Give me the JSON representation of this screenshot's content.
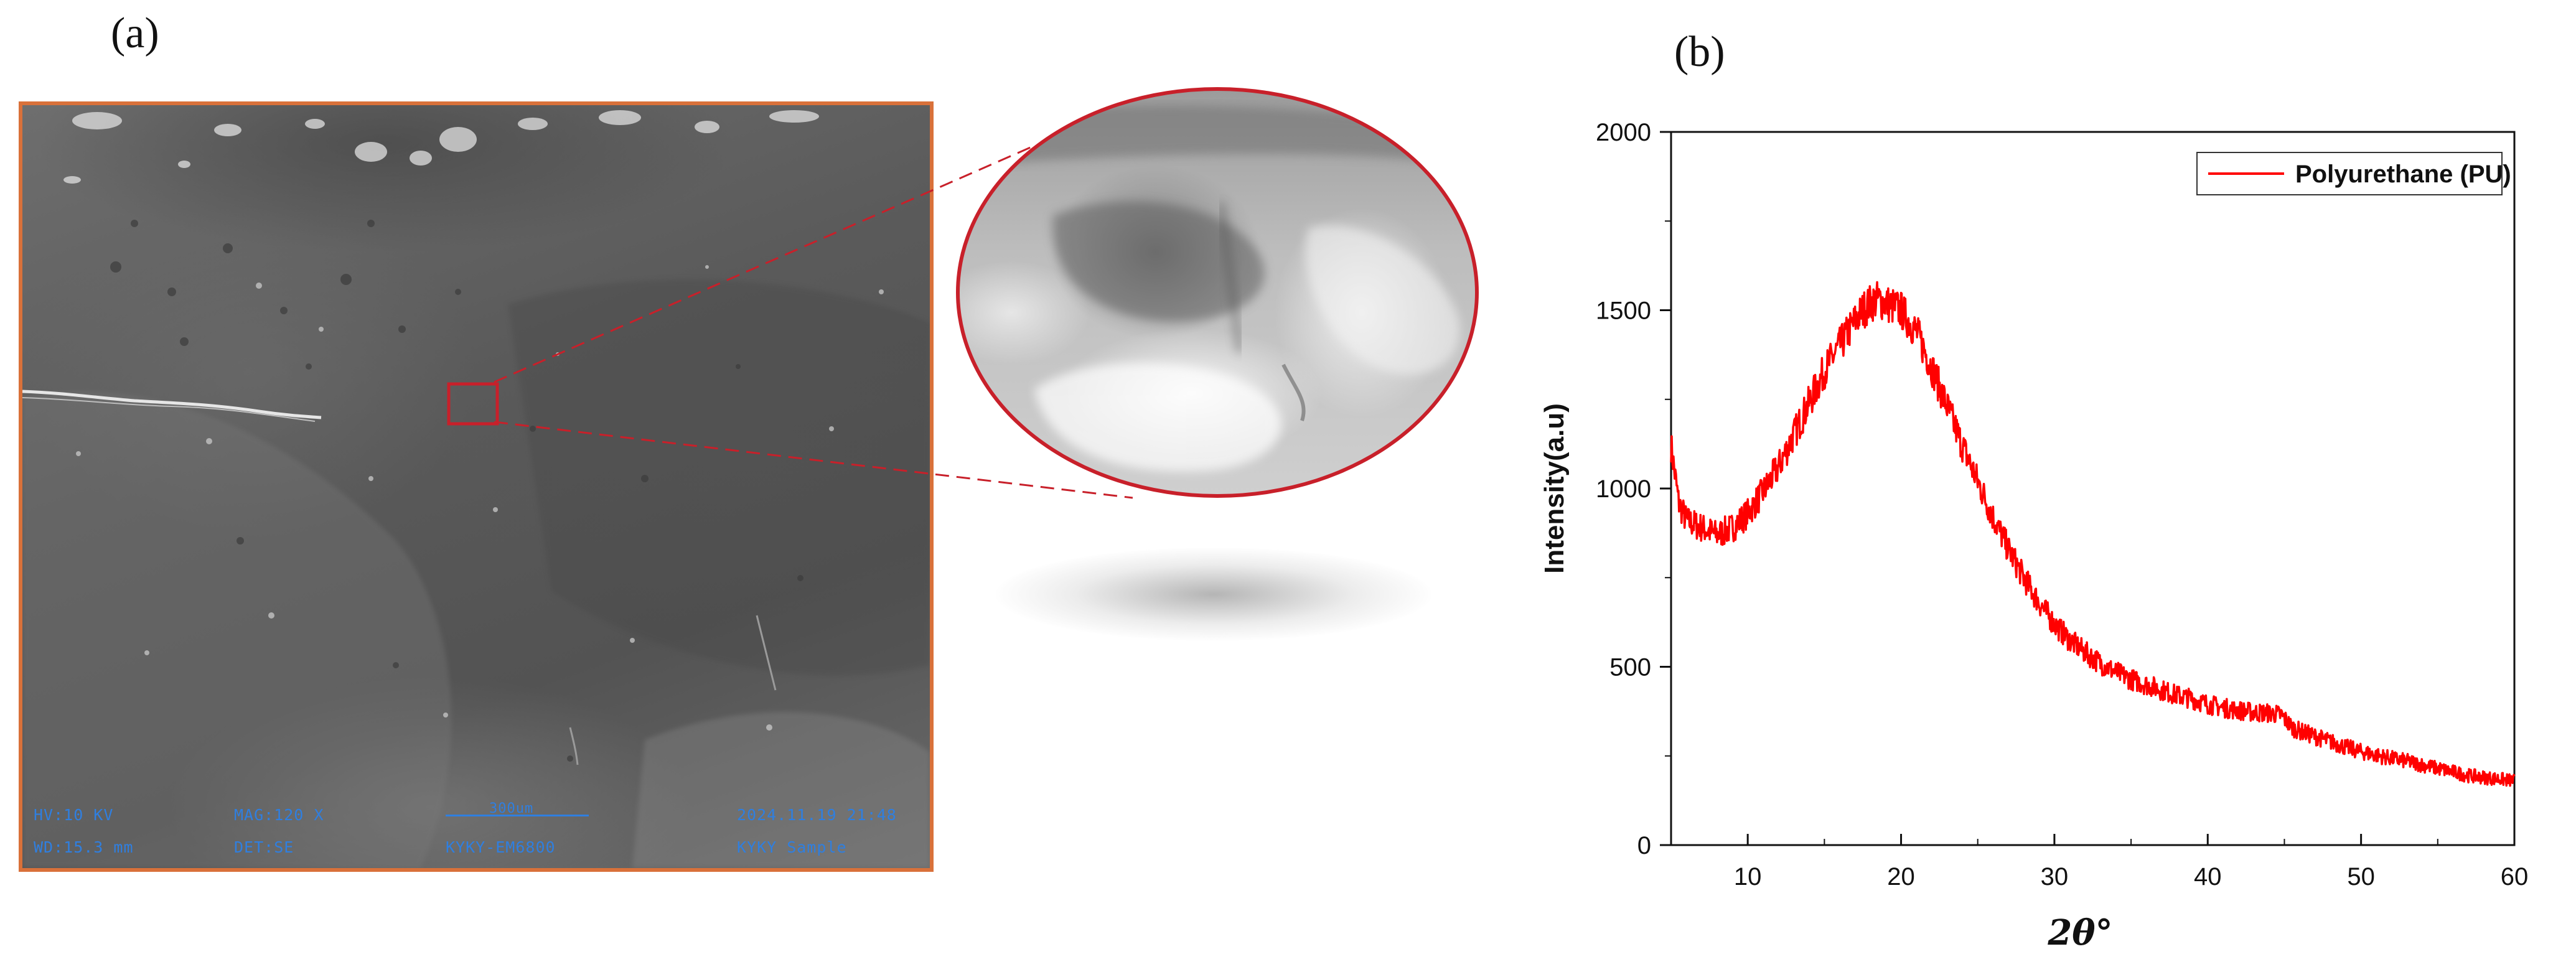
{
  "panels": {
    "a_label": "(a)",
    "b_label": "(b)"
  },
  "sem": {
    "hv": "HV:10 KV",
    "mag": "MAG:120 X",
    "scale": "300um",
    "datetime": "2024.11.19 21:48",
    "wd": "WD:15.3 mm",
    "det": "DET:SE",
    "instrument": "KYKY-EM6800",
    "sample": "KYKY Sample"
  },
  "colors": {
    "frame": "#d9713a",
    "highlight": "#c8202a",
    "series": "#ff0000",
    "sem_text": "#2f7fe0"
  },
  "chart_data": {
    "type": "line",
    "title": "",
    "xlabel": "2θ°",
    "ylabel": "Intensity(a.u)",
    "xlim": [
      5,
      60
    ],
    "ylim": [
      0,
      2000
    ],
    "x_ticks": [
      10,
      20,
      30,
      40,
      50,
      60
    ],
    "y_ticks": [
      0,
      500,
      1000,
      1500,
      2000
    ],
    "legend_position": "top-right",
    "grid": false,
    "series": [
      {
        "name": "Polyurethane (PU)",
        "x": [
          5,
          5.5,
          6,
          7,
          8,
          9,
          10,
          11,
          12,
          13,
          14,
          15,
          16,
          17,
          17.5,
          18,
          18.5,
          19,
          19.5,
          20,
          20.5,
          21,
          22,
          23,
          24,
          25,
          26,
          27,
          28,
          29,
          30,
          31,
          32,
          33,
          34,
          35,
          36,
          37,
          38,
          39,
          40,
          41,
          42,
          43,
          44,
          44.8,
          45.5,
          46,
          47,
          48,
          49,
          50,
          51,
          52,
          53,
          54,
          55,
          56,
          57,
          58,
          59,
          60
        ],
        "y": [
          1120,
          960,
          910,
          890,
          870,
          890,
          930,
          990,
          1060,
          1150,
          1240,
          1330,
          1400,
          1470,
          1500,
          1520,
          1530,
          1520,
          1510,
          1500,
          1470,
          1440,
          1340,
          1230,
          1120,
          1020,
          920,
          830,
          750,
          680,
          620,
          575,
          540,
          510,
          485,
          465,
          450,
          435,
          420,
          410,
          395,
          385,
          378,
          372,
          370,
          365,
          330,
          320,
          305,
          290,
          275,
          262,
          252,
          243,
          235,
          225,
          215,
          205,
          195,
          190,
          185,
          180
        ]
      }
    ]
  }
}
